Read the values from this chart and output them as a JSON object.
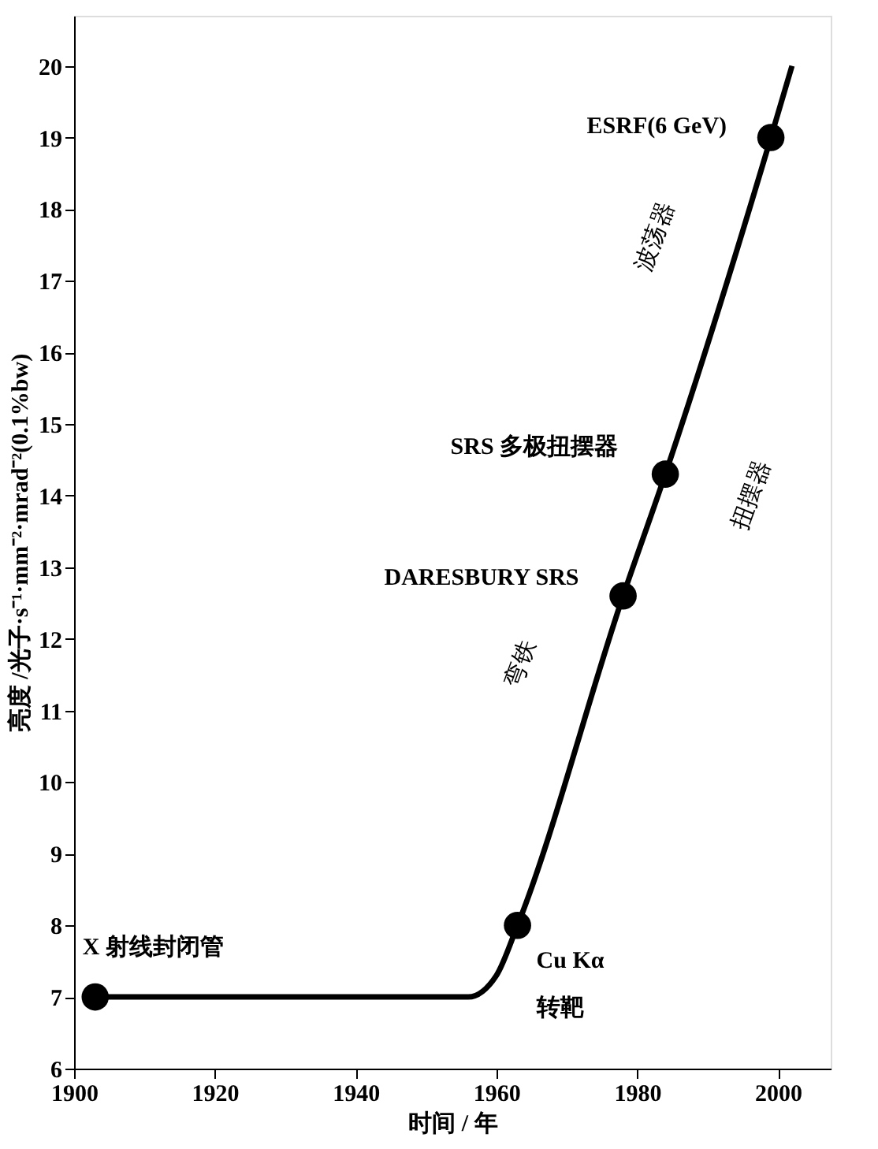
{
  "chart_data": {
    "type": "line",
    "xlabel": "时间 / 年",
    "ylabel": "亮度 /光子·s⁻¹·mm⁻²·mrad⁻²(0.1%bw)",
    "xlim": [
      1900,
      2007.5
    ],
    "ylim": [
      6,
      20.7
    ],
    "xticks": [
      1900,
      1920,
      1940,
      1960,
      1980,
      2000
    ],
    "yticks": [
      6,
      7,
      8,
      9,
      10,
      11,
      12,
      13,
      14,
      15,
      16,
      17,
      18,
      19,
      20
    ],
    "grid": false,
    "series": [
      {
        "color": "#000000",
        "marker": "none",
        "x": [
          1903,
          1956,
          1960,
          1963,
          1978,
          1984,
          1999,
          2002
        ],
        "values": [
          7,
          7,
          7.3,
          8,
          12.6,
          14.3,
          19,
          20
        ]
      },
      {
        "type": "scatter",
        "color": "#000000",
        "marker": "circle",
        "x": [
          1903,
          1963,
          1978,
          1984,
          1999
        ],
        "values": [
          7,
          8,
          12.6,
          14.3,
          19
        ]
      }
    ],
    "annotations": [
      {
        "text": "X 射线封闭管",
        "x": 1903,
        "y": 7
      },
      {
        "text": "Cu Kα\n转靶",
        "x": 1963,
        "y": 8
      },
      {
        "text": "DARESBURY SRS",
        "x": 1978,
        "y": 12.6
      },
      {
        "text": "SRS 多极扭摆器",
        "x": 1984,
        "y": 14.3
      },
      {
        "text": "ESRF(6 GeV)",
        "x": 1999,
        "y": 19
      },
      "弯铁",
      "扭摆器",
      "波荡器"
    ]
  }
}
